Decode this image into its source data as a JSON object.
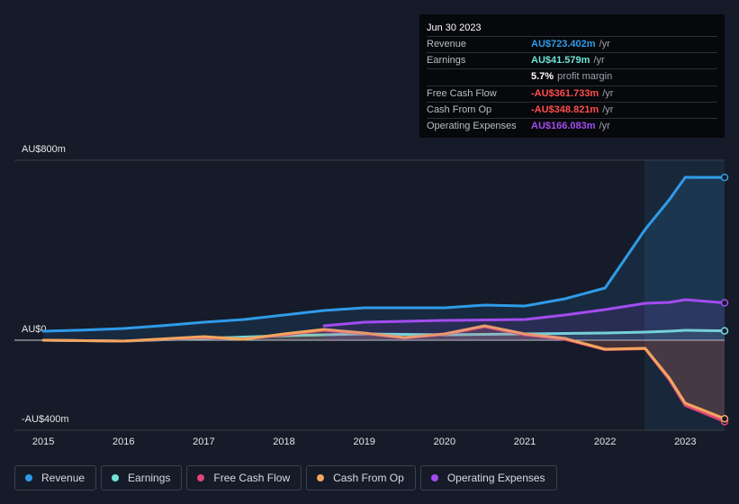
{
  "chart_data": {
    "type": "line",
    "x": [
      2015,
      2015.5,
      2016,
      2016.5,
      2017,
      2017.5,
      2018,
      2018.5,
      2019,
      2019.5,
      2020,
      2020.5,
      2021,
      2021.5,
      2022,
      2022.5,
      2022.8,
      2023,
      2023.49
    ],
    "xlim": [
      2014.64,
      2023.49
    ],
    "xticks": [
      2015,
      2016,
      2017,
      2018,
      2019,
      2020,
      2021,
      2022,
      2023
    ],
    "ylim": [
      -400,
      800
    ],
    "yticks": [
      {
        "value": -400,
        "label": "-AU$400m"
      },
      {
        "value": 0,
        "label": "AU$0"
      },
      {
        "value": 800,
        "label": "AU$800m"
      }
    ],
    "grid": true,
    "series": [
      {
        "name": "Revenue",
        "color": "#2f9be8",
        "values": [
          40,
          45,
          52,
          65,
          80,
          92,
          112,
          132,
          144,
          144,
          144,
          156,
          152,
          184,
          232,
          492,
          624,
          724,
          723.402
        ]
      },
      {
        "name": "Earnings",
        "color": "#6fe3d6",
        "values": [
          0,
          -2,
          -4,
          2,
          8,
          14,
          20,
          24,
          28,
          26,
          24,
          26,
          28,
          30,
          32,
          36,
          40,
          44,
          41.579
        ]
      },
      {
        "name": "Free Cash Flow",
        "color": "#e0457b",
        "values": [
          0,
          -2,
          -4,
          4,
          12,
          6,
          24,
          44,
          30,
          10,
          26,
          60,
          24,
          4,
          -42,
          -38,
          -175,
          -290,
          -361.733
        ]
      },
      {
        "name": "Cash From Op",
        "color": "#f2a65e",
        "values": [
          0,
          -2,
          -4,
          6,
          16,
          4,
          28,
          48,
          32,
          12,
          28,
          64,
          28,
          8,
          -40,
          -36,
          -168,
          -280,
          -348.821
        ]
      },
      {
        "name": "Operating Expenses",
        "color": "#a34cf0",
        "values": [
          null,
          null,
          null,
          null,
          null,
          null,
          null,
          64,
          80,
          84,
          88,
          90,
          92,
          112,
          136,
          164,
          168,
          180,
          166.083
        ]
      }
    ],
    "tooltip": {
      "date": "Jun 30 2023",
      "rows": [
        {
          "label": "Revenue",
          "value": "AU$723.402m",
          "unit": "/yr",
          "color": "#2f9be8"
        },
        {
          "label": "Earnings",
          "value": "AU$41.579m",
          "unit": "/yr",
          "color": "#6fe3d6"
        },
        {
          "label": "",
          "value": "5.7%",
          "unit": "profit margin",
          "color": "#ffffff"
        },
        {
          "label": "Free Cash Flow",
          "value": "-AU$361.733m",
          "unit": "/yr",
          "color": "#ff4d4d"
        },
        {
          "label": "Cash From Op",
          "value": "-AU$348.821m",
          "unit": "/yr",
          "color": "#ff4d4d"
        },
        {
          "label": "Operating Expenses",
          "value": "AU$166.083m",
          "unit": "/yr",
          "color": "#a34cf0"
        }
      ]
    }
  }
}
